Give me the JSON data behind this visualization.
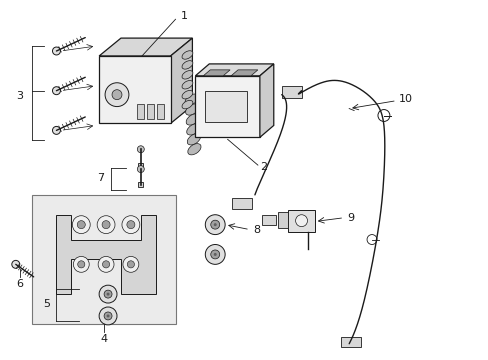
{
  "bg_color": "#ffffff",
  "line_color": "#1a1a1a",
  "gray_fill": "#e8e8e8",
  "light_gray": "#f0f0f0",
  "mid_gray": "#c8c8c8",
  "dark_gray": "#888888",
  "box4_fill": "#efefef",
  "figsize": [
    4.89,
    3.6
  ],
  "dpi": 100,
  "label_fs": 8
}
